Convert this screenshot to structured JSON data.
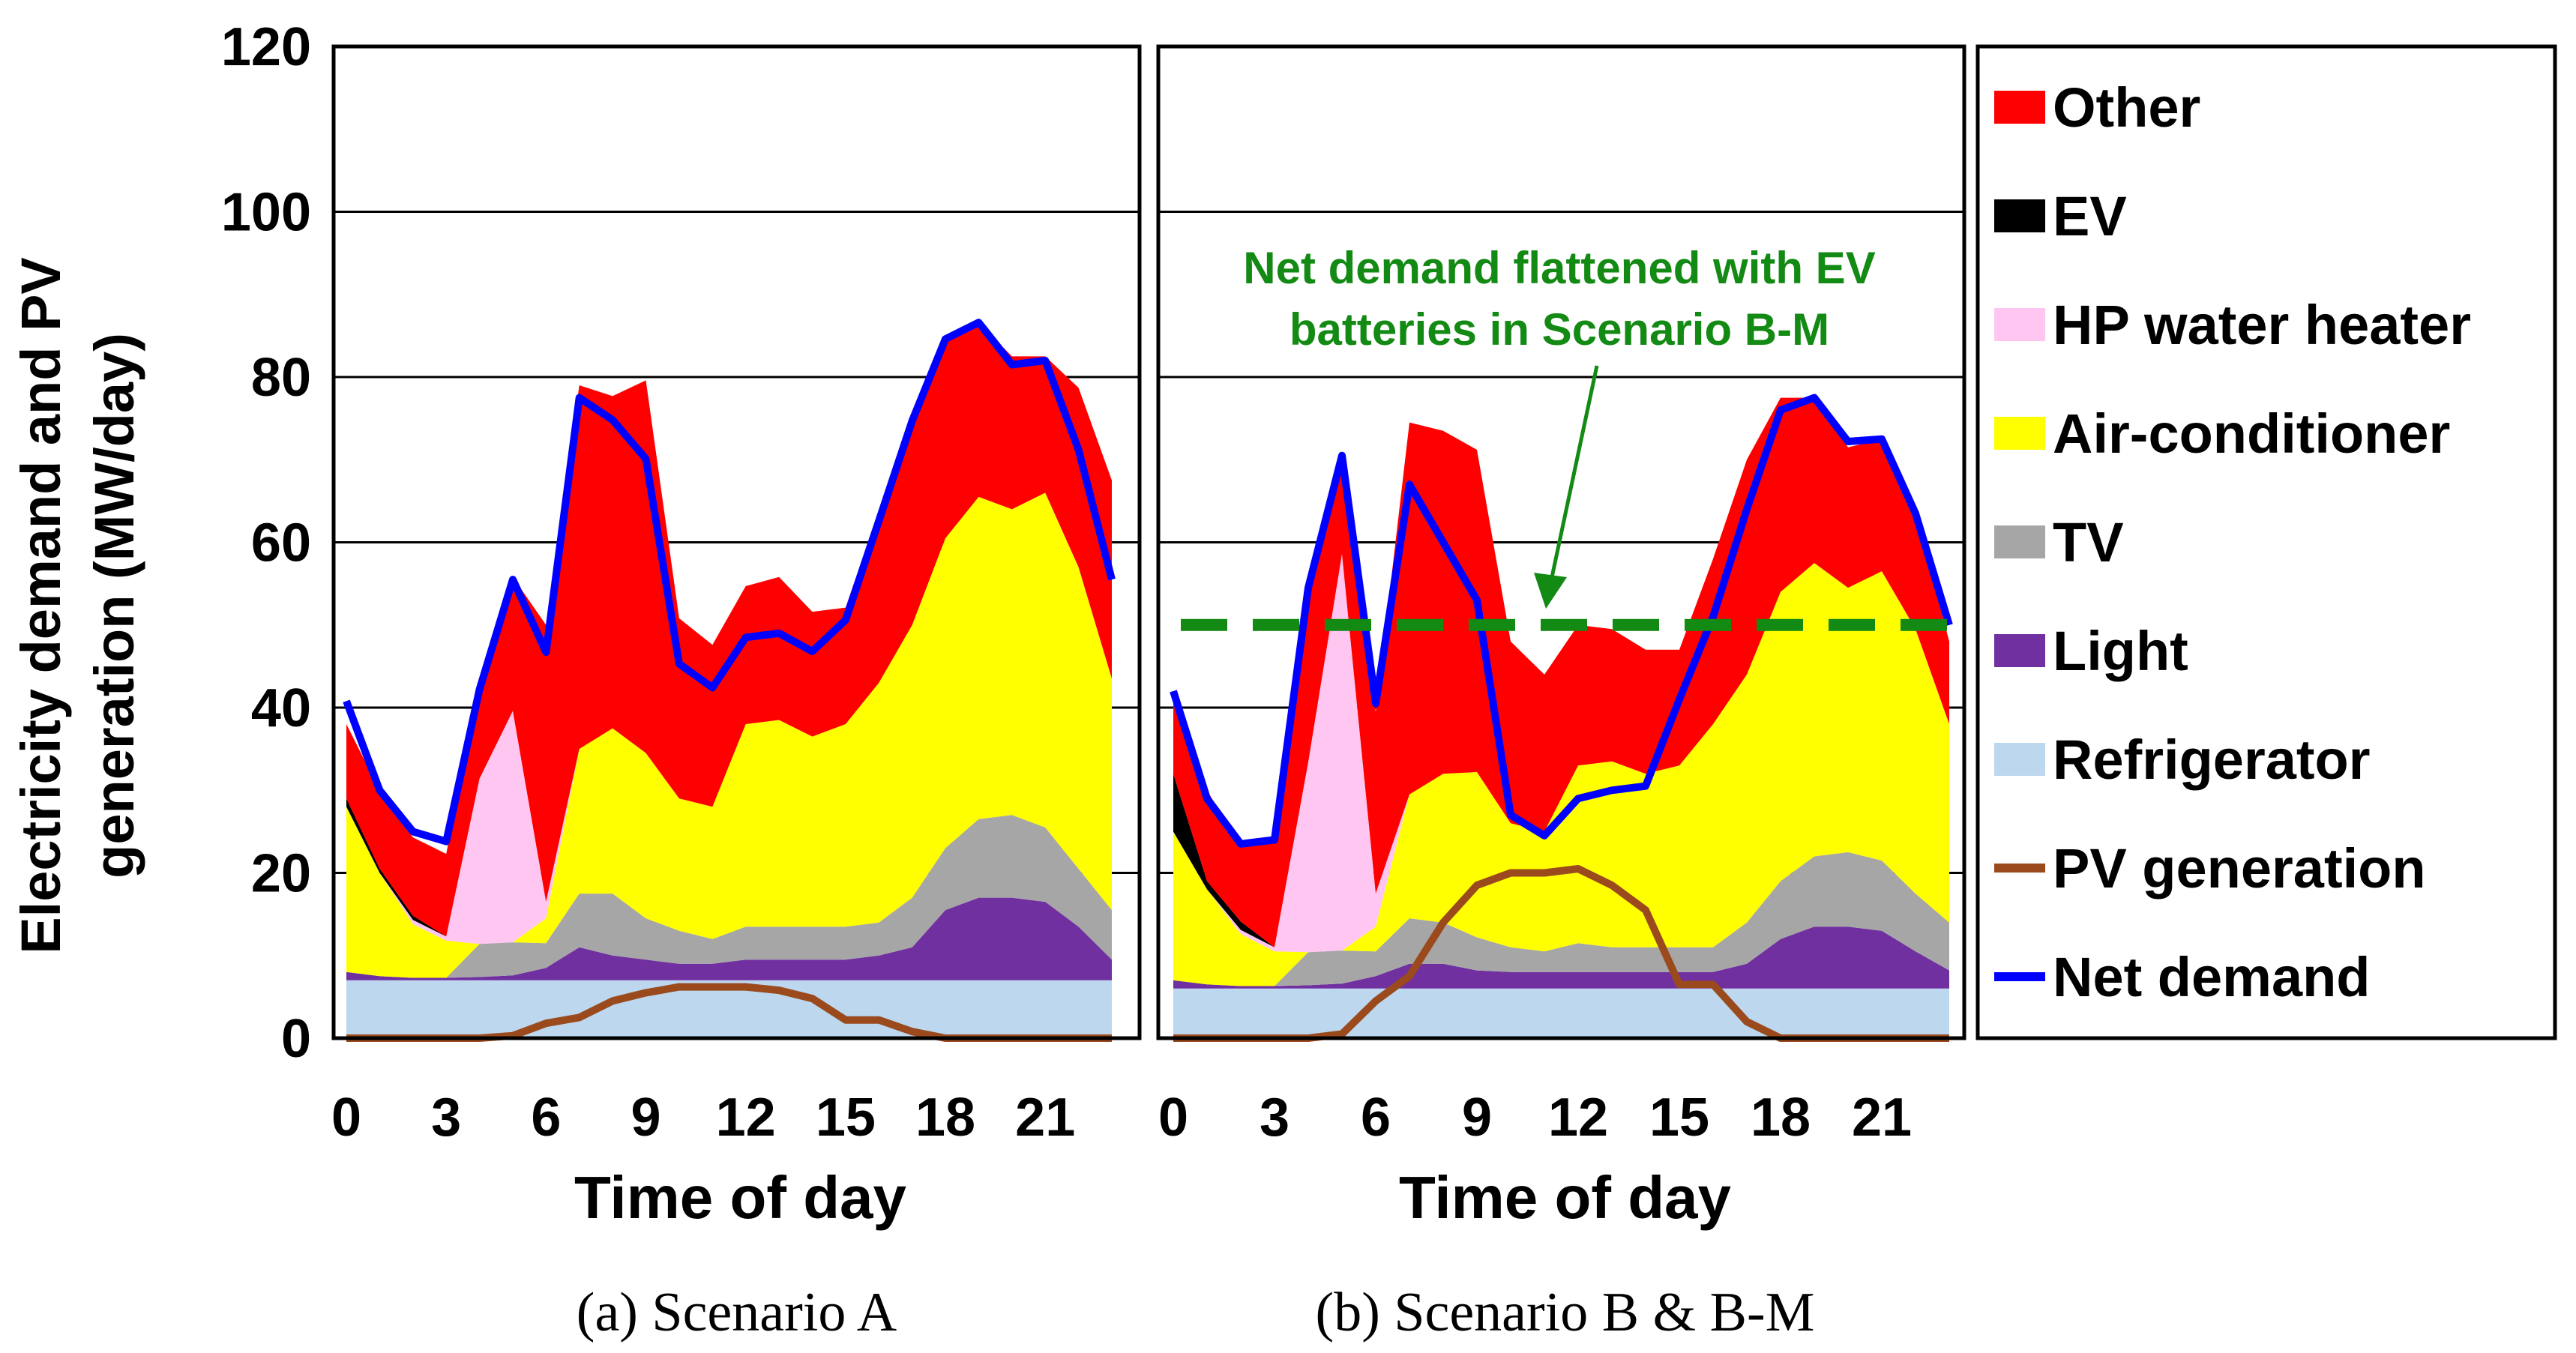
{
  "colors": {
    "Other": "#ff0000",
    "EV": "#000000",
    "HP water heater": "#ffc6f2",
    "Air-conditioner": "#ffff00",
    "TV": "#a6a6a6",
    "Light": "#7030a0",
    "Refrigerator": "#bcd7ee",
    "PV generation": "#9a4a1c",
    "Net demand": "#0000ff",
    "flattened": "#138a13"
  },
  "legend": [
    "Other",
    "EV",
    "HP water heater",
    "Air-conditioner",
    "TV",
    "Light",
    "Refrigerator",
    "PV generation",
    "Net demand"
  ],
  "y_axis_label_lines": [
    "Electricity demand and PV",
    "generation (MW/day)"
  ],
  "chart_data": [
    {
      "type": "area",
      "caption": "(a) Scenario A",
      "xlabel": "Time of day",
      "ylim": [
        0,
        120
      ],
      "yticks": [
        0,
        20,
        40,
        60,
        80,
        100,
        120
      ],
      "xticks": [
        0,
        3,
        6,
        9,
        12,
        15,
        18,
        21
      ],
      "x": [
        0,
        1,
        2,
        3,
        4,
        5,
        6,
        7,
        8,
        9,
        10,
        11,
        12,
        13,
        14,
        15,
        16,
        17,
        18,
        19,
        20,
        21,
        22,
        23
      ],
      "series": [
        {
          "name": "Refrigerator",
          "values": [
            7,
            7,
            7,
            7,
            7,
            7,
            7,
            7,
            7,
            7,
            7,
            7,
            7,
            7,
            7,
            7,
            7,
            7,
            7,
            7,
            7,
            7,
            7,
            7
          ]
        },
        {
          "name": "Light",
          "values": [
            1,
            0.5,
            0.3,
            0.3,
            0.4,
            0.6,
            1.5,
            4,
            3,
            2.5,
            2,
            2,
            2.5,
            2.5,
            2.5,
            2.5,
            3,
            4,
            8.5,
            10,
            10,
            9.5,
            6.5,
            2.5
          ]
        },
        {
          "name": "TV",
          "values": [
            0,
            0,
            0,
            0,
            4,
            4,
            3,
            6.5,
            7.5,
            5,
            4,
            3,
            4,
            4,
            4,
            4,
            4,
            6,
            7.5,
            9.5,
            10,
            9,
            7,
            6
          ]
        },
        {
          "name": "Air-conditioner",
          "values": [
            20,
            12.5,
            6.5,
            4.5,
            0,
            0,
            3,
            17.5,
            20,
            20,
            16,
            16,
            24.5,
            25,
            23,
            24.5,
            29,
            33,
            37.5,
            39,
            37,
            40.5,
            36.5,
            28
          ]
        },
        {
          "name": "HP water heater",
          "values": [
            0,
            0,
            0.5,
            0.5,
            20,
            28,
            2,
            0,
            0,
            0,
            0,
            0,
            0,
            0,
            0,
            0,
            0,
            0,
            0,
            0,
            0,
            0,
            0,
            0
          ]
        },
        {
          "name": "EV",
          "values": [
            1,
            0.5,
            0.5,
            0,
            0,
            0,
            0,
            0,
            0,
            0,
            0,
            0,
            0,
            0,
            0,
            0,
            0,
            0,
            0,
            0,
            0,
            0,
            0,
            0
          ]
        },
        {
          "name": "Other",
          "values": [
            9,
            9.5,
            9.5,
            10,
            11.8,
            16.2,
            33.5,
            44,
            40.2,
            45.1,
            21.8,
            19.6,
            16.7,
            17.3,
            15.1,
            14.1,
            20.8,
            25.5,
            24.1,
            21.1,
            18.5,
            16.5,
            21.7,
            24
          ]
        },
        {
          "name": "PV generation",
          "values": [
            0,
            0,
            0,
            0,
            0,
            0.3,
            1.8,
            2.5,
            4.5,
            5.5,
            6.2,
            6.2,
            6.2,
            5.8,
            4.8,
            2.2,
            2.2,
            0.8,
            0,
            0,
            0,
            0,
            0,
            0
          ]
        },
        {
          "name": "Net demand",
          "values": [
            40.8,
            30,
            25,
            23.8,
            42.2,
            55.5,
            46.7,
            77.5,
            74.8,
            70.1,
            45.3,
            42.4,
            48.5,
            49,
            46.8,
            50.6,
            62.6,
            74.7,
            84.6,
            86.6,
            81.5,
            82,
            71.2,
            55.5
          ]
        }
      ]
    },
    {
      "type": "area",
      "caption": "(b) Scenario B & B-M",
      "xlabel": "Time of day",
      "ylim": [
        0,
        120
      ],
      "xticks": [
        0,
        3,
        6,
        9,
        12,
        15,
        18,
        21
      ],
      "x": [
        0,
        1,
        2,
        3,
        4,
        5,
        6,
        7,
        8,
        9,
        10,
        11,
        12,
        13,
        14,
        15,
        16,
        17,
        18,
        19,
        20,
        21,
        22,
        23
      ],
      "annotation_lines": [
        "Net demand flattened with EV",
        "batteries in Scenario B-M"
      ],
      "flattened_level": 50,
      "series": [
        {
          "name": "Refrigerator",
          "values": [
            6,
            6,
            6,
            6,
            6,
            6,
            6,
            6,
            6,
            6,
            6,
            6,
            6,
            6,
            6,
            6,
            6,
            6,
            6,
            6,
            6,
            6,
            6,
            6
          ]
        },
        {
          "name": "Light",
          "values": [
            1,
            0.5,
            0.3,
            0.3,
            0.4,
            0.6,
            1.5,
            3,
            3,
            2.2,
            2,
            2,
            2,
            2,
            2,
            2,
            2,
            3,
            6,
            7.5,
            7.5,
            7,
            4.5,
            2.2
          ]
        },
        {
          "name": "TV",
          "values": [
            0,
            0,
            0,
            0,
            4,
            4,
            3,
            5.5,
            5,
            4,
            3,
            2.5,
            3.5,
            3,
            3,
            3,
            3,
            5,
            7,
            8.5,
            9,
            8.5,
            7,
            5.8
          ]
        },
        {
          "name": "Air-conditioner",
          "values": [
            18,
            11.5,
            6.3,
            4.2,
            0,
            0,
            3,
            15,
            18,
            20,
            15,
            14.5,
            21.5,
            22.5,
            21,
            22,
            27,
            30,
            35,
            35.5,
            32,
            35,
            32,
            24
          ]
        },
        {
          "name": "HP water heater",
          "values": [
            0,
            0,
            0.5,
            0.5,
            23,
            48,
            4,
            0,
            0,
            0,
            0,
            0,
            0,
            0,
            0,
            0,
            0,
            0,
            0,
            0,
            0,
            0,
            0,
            0
          ]
        },
        {
          "name": "EV",
          "values": [
            7,
            1,
            1,
            0,
            0,
            0,
            0,
            0,
            0,
            0,
            0,
            0,
            0,
            0,
            0,
            0,
            0,
            0,
            0,
            0,
            0,
            0,
            0,
            0
          ]
        },
        {
          "name": "Other",
          "values": [
            9,
            11,
            9,
            13,
            22,
            12,
            22,
            45,
            41.5,
            39,
            22,
            19,
            17,
            16,
            15,
            14,
            20,
            26,
            23.5,
            20,
            17,
            16,
            14,
            10
          ]
        },
        {
          "name": "PV generation",
          "values": [
            0,
            0,
            0,
            0,
            0,
            0.5,
            4.5,
            7.5,
            14,
            18.5,
            20,
            20,
            20.5,
            18.5,
            15.5,
            6.5,
            6.5,
            2,
            0,
            0,
            0,
            0,
            0,
            0
          ]
        },
        {
          "name": "Net demand",
          "values": [
            42,
            29,
            23.5,
            24,
            54.5,
            70.5,
            40.5,
            67,
            60,
            53,
            27,
            24.5,
            29,
            30,
            30.5,
            41,
            51,
            64,
            76,
            77.5,
            72.2,
            72.5,
            63.5,
            50
          ]
        }
      ]
    }
  ]
}
